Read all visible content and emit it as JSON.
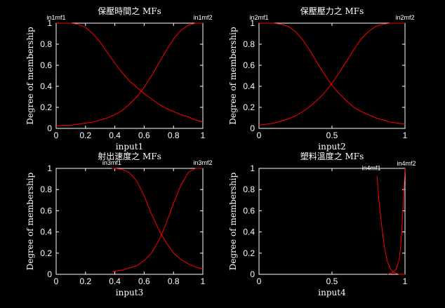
{
  "chart_data": [
    {
      "type": "line",
      "title": "保壓時間之 MFs",
      "xlabel": "input1",
      "ylabel": "Degree of membership",
      "xlim": [
        0,
        1
      ],
      "ylim": [
        0,
        1
      ],
      "xticks": [
        "0",
        "0.2",
        "0.4",
        "0.6",
        "0.8",
        "1"
      ],
      "yticks": [
        "0",
        "0.2",
        "0.4",
        "0.6",
        "0.8",
        "1"
      ],
      "grid": false,
      "color": "#ff0000",
      "series": [
        {
          "name": "in1mf1",
          "x": [
            0,
            0.05,
            0.1,
            0.15,
            0.2,
            0.25,
            0.3,
            0.35,
            0.4,
            0.45,
            0.5,
            0.55,
            0.6,
            0.65,
            0.7,
            0.75,
            0.8,
            0.85,
            0.9,
            0.95,
            1
          ],
          "values": [
            1,
            1,
            1,
            0.99,
            0.96,
            0.9,
            0.82,
            0.72,
            0.62,
            0.53,
            0.45,
            0.39,
            0.33,
            0.28,
            0.23,
            0.19,
            0.16,
            0.13,
            0.11,
            0.08,
            0.06
          ]
        },
        {
          "name": "in1mf2",
          "x": [
            0,
            0.05,
            0.1,
            0.15,
            0.2,
            0.25,
            0.3,
            0.35,
            0.4,
            0.45,
            0.5,
            0.55,
            0.6,
            0.65,
            0.7,
            0.75,
            0.8,
            0.85,
            0.9,
            0.95,
            1
          ],
          "values": [
            0.02,
            0.03,
            0.03,
            0.04,
            0.05,
            0.06,
            0.08,
            0.1,
            0.13,
            0.17,
            0.23,
            0.3,
            0.39,
            0.5,
            0.62,
            0.74,
            0.85,
            0.93,
            0.98,
            1,
            1
          ]
        }
      ]
    },
    {
      "type": "line",
      "title": "保壓壓力之 MFs",
      "xlabel": "input2",
      "ylabel": "Degree of membership",
      "xlim": [
        0,
        1
      ],
      "ylim": [
        0,
        1
      ],
      "xticks": [
        "0",
        "0.5",
        "1"
      ],
      "yticks": [
        "0",
        "0.2",
        "0.4",
        "0.6",
        "0.8",
        "1"
      ],
      "grid": false,
      "color": "#ff0000",
      "series": [
        {
          "name": "in2mf1",
          "x": [
            0,
            0.05,
            0.1,
            0.15,
            0.2,
            0.25,
            0.3,
            0.35,
            0.4,
            0.45,
            0.5,
            0.55,
            0.6,
            0.65,
            0.7,
            0.75,
            0.8,
            0.85,
            0.9,
            0.95,
            1
          ],
          "values": [
            1,
            1,
            1,
            0.99,
            0.97,
            0.92,
            0.84,
            0.74,
            0.62,
            0.51,
            0.41,
            0.33,
            0.26,
            0.2,
            0.16,
            0.13,
            0.1,
            0.08,
            0.06,
            0.05,
            0.04
          ]
        },
        {
          "name": "in2mf2",
          "x": [
            0,
            0.05,
            0.1,
            0.15,
            0.2,
            0.25,
            0.3,
            0.35,
            0.4,
            0.45,
            0.5,
            0.55,
            0.6,
            0.65,
            0.7,
            0.75,
            0.8,
            0.85,
            0.9,
            0.95,
            1
          ],
          "values": [
            0.03,
            0.04,
            0.05,
            0.07,
            0.09,
            0.12,
            0.16,
            0.21,
            0.27,
            0.34,
            0.43,
            0.53,
            0.64,
            0.75,
            0.85,
            0.92,
            0.97,
            0.99,
            1,
            1,
            1
          ]
        }
      ]
    },
    {
      "type": "line",
      "title": "射出速度之 MFs",
      "xlabel": "input3",
      "ylabel": "Degree of membership",
      "xlim": [
        0,
        1
      ],
      "ylim": [
        0,
        1
      ],
      "xticks": [
        "0",
        "0.2",
        "0.4",
        "0.6",
        "0.8",
        "1"
      ],
      "yticks": [
        "0",
        "0.2",
        "0.4",
        "0.6",
        "0.8",
        "1"
      ],
      "grid": false,
      "color": "#ff0000",
      "series": [
        {
          "name": "in3mf1",
          "x": [
            0.38,
            0.4,
            0.45,
            0.5,
            0.55,
            0.6,
            0.65,
            0.7,
            0.75,
            0.8,
            0.85,
            0.9,
            0.95,
            1
          ],
          "values": [
            1,
            1,
            0.99,
            0.96,
            0.88,
            0.74,
            0.57,
            0.42,
            0.3,
            0.2,
            0.14,
            0.1,
            0.07,
            0.05
          ]
        },
        {
          "name": "in3mf2",
          "x": [
            0.38,
            0.4,
            0.45,
            0.5,
            0.55,
            0.6,
            0.65,
            0.7,
            0.75,
            0.8,
            0.85,
            0.9,
            0.95,
            1
          ],
          "values": [
            0.02,
            0.03,
            0.04,
            0.06,
            0.08,
            0.13,
            0.2,
            0.32,
            0.48,
            0.67,
            0.84,
            0.96,
            1,
            1
          ]
        }
      ]
    },
    {
      "type": "line",
      "title": "塑料溫度之 MFs",
      "xlabel": "input4",
      "ylabel": "Degree of membership",
      "xlim": [
        0,
        1
      ],
      "ylim": [
        0,
        1
      ],
      "xticks": [
        "0",
        "0.5",
        "1"
      ],
      "yticks": [
        "0",
        "0.2",
        "0.4",
        "0.6",
        "0.8",
        "1"
      ],
      "grid": false,
      "color": "#ff0000",
      "series": [
        {
          "name": "in4mf1",
          "x": [
            0.808,
            0.82,
            0.84,
            0.86,
            0.88,
            0.9,
            0.92,
            0.94,
            0.96,
            0.98,
            1
          ],
          "values": [
            0.93,
            0.72,
            0.46,
            0.25,
            0.12,
            0.05,
            0.02,
            0.01,
            0,
            0,
            0
          ]
        },
        {
          "name": "in4mf2",
          "x": [
            0.88,
            0.9,
            0.92,
            0.94,
            0.96,
            0.97,
            0.98,
            0.99,
            1
          ],
          "values": [
            0,
            0.01,
            0.02,
            0.05,
            0.14,
            0.26,
            0.45,
            0.72,
            1
          ]
        }
      ]
    }
  ]
}
